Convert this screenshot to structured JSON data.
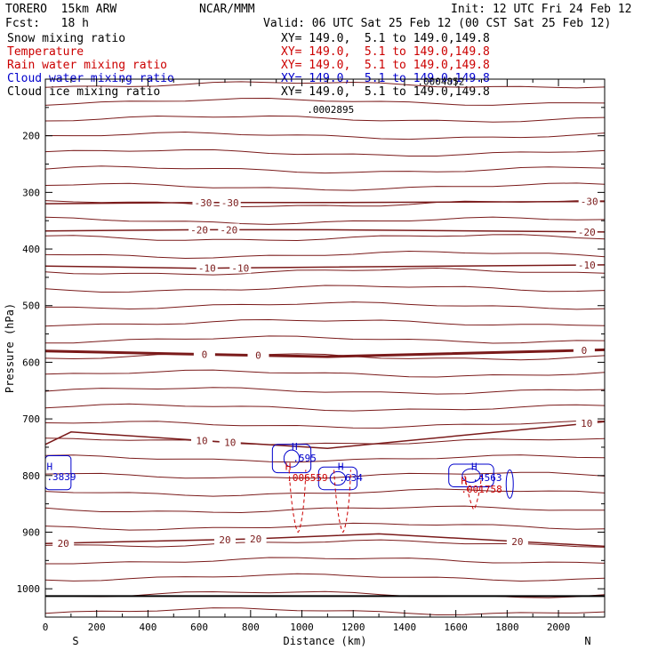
{
  "header": {
    "model": "TORERO  15km ARW",
    "center": "NCAR/MMM",
    "init": "Init: 12 UTC Fri 24 Feb 12",
    "fcst": "Fcst:   18 h",
    "valid": "Valid: 06 UTC Sat 25 Feb 12 (00 CST Sat 25 Feb 12)"
  },
  "legend": [
    {
      "name": "Snow mixing ratio",
      "color": "#000000",
      "xy": "XY= 149.0,  5.1 to 149.0,149.8"
    },
    {
      "name": "Temperature",
      "color": "#cc0000",
      "xy": "XY= 149.0,  5.1 to 149.0,149.8"
    },
    {
      "name": "Rain water mixing ratio",
      "color": "#cc0000",
      "xy": "XY= 149.0,  5.1 to 149.0,149.8"
    },
    {
      "name": "Cloud water mixing ratio",
      "color": "#0000cc",
      "xy": "XY= 149.0,  5.1 to 149.0,149.8"
    },
    {
      "name": "Cloud ice mixing ratio",
      "color": "#000000",
      "xy": "XY= 149.0,  5.1 to 149.0,149.8"
    }
  ],
  "chart_data": {
    "type": "line",
    "xlabel": "Distance (km)",
    "ylabel": "Pressure (hPa)",
    "xlim": [
      0,
      2180
    ],
    "ylim": [
      1050,
      100
    ],
    "x_ticks": [
      0,
      200,
      400,
      600,
      800,
      1000,
      1200,
      1400,
      1600,
      1800,
      2000
    ],
    "y_ticks": [
      200,
      300,
      400,
      500,
      600,
      700,
      800,
      900,
      1000
    ],
    "x_end_labels": {
      "left": "S",
      "right": "N"
    },
    "surface_pressure": 1013,
    "temperature_isotherms": [
      {
        "label": "-30",
        "points": [
          [
            0,
            320
          ],
          [
            600,
            318
          ],
          [
            1100,
            318
          ],
          [
            2180,
            316
          ]
        ],
        "label_at": [
          [
            615,
            -30
          ],
          [
            720,
            -30
          ],
          [
            2120,
            -30
          ]
        ]
      },
      {
        "label": "-20",
        "points": [
          [
            0,
            368
          ],
          [
            600,
            366
          ],
          [
            1100,
            366
          ],
          [
            2180,
            370
          ]
        ],
        "label_at": [
          [
            600,
            -20
          ],
          [
            715,
            -20
          ],
          [
            2110,
            -20
          ]
        ]
      },
      {
        "label": "-10",
        "points": [
          [
            0,
            430
          ],
          [
            600,
            434
          ],
          [
            1100,
            432
          ],
          [
            2180,
            428
          ]
        ],
        "label_at": [
          [
            630,
            -10
          ],
          [
            760,
            -10
          ],
          [
            2110,
            -10
          ]
        ]
      },
      {
        "label": "0",
        "points": [
          [
            0,
            580
          ],
          [
            500,
            585
          ],
          [
            1100,
            590
          ],
          [
            2180,
            578
          ]
        ],
        "label_at": [
          [
            620,
            0
          ],
          [
            830,
            0
          ],
          [
            2100,
            0
          ]
        ]
      },
      {
        "label": "10",
        "points": [
          [
            0,
            745
          ],
          [
            100,
            723
          ],
          [
            600,
            738
          ],
          [
            1100,
            752
          ],
          [
            2180,
            705
          ]
        ],
        "label_at": [
          [
            610,
            10
          ],
          [
            720,
            10
          ],
          [
            2110,
            10
          ]
        ]
      },
      {
        "label": "20",
        "points": [
          [
            0,
            920
          ],
          [
            800,
            912
          ],
          [
            1300,
            903
          ],
          [
            2180,
            925
          ]
        ],
        "label_at": [
          [
            70,
            20
          ],
          [
            700,
            20
          ],
          [
            820,
            20
          ],
          [
            1840,
            20
          ]
        ]
      }
    ],
    "cloud_water_max_labels": [
      {
        "text": "H",
        "x": 960,
        "p": 755
      },
      {
        "text": ".595",
        "x": 965,
        "p": 775
      },
      {
        "text": "H",
        "x": 1140,
        "p": 790
      },
      {
        "text": ".634",
        "x": 1145,
        "p": 810
      },
      {
        "text": "H",
        "x": 1660,
        "p": 790
      },
      {
        "text": ".4563",
        "x": 1665,
        "p": 810
      },
      {
        "text": "H",
        "x": 5,
        "p": 790
      },
      {
        "text": ".3839",
        "x": 5,
        "p": 808
      }
    ],
    "rain_max_labels": [
      {
        "text": "H",
        "x": 935,
        "p": 790
      },
      {
        "text": ".006559",
        "x": 940,
        "p": 810
      },
      {
        "text": "H",
        "x": 1620,
        "p": 815
      },
      {
        "text": ".001758",
        "x": 1620,
        "p": 830
      }
    ],
    "snow_max_labels": [
      {
        "text": ".0002895",
        "x": 1020,
        "p": 160
      },
      {
        "text": ".0004852",
        "x": 1450,
        "p": 110
      }
    ]
  }
}
